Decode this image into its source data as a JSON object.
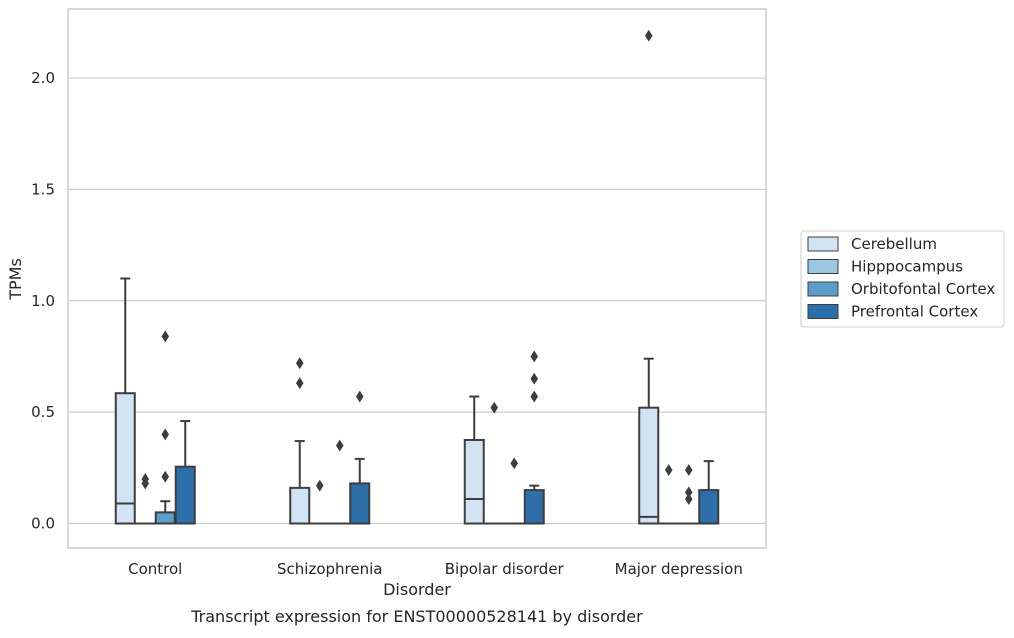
{
  "chart_data": {
    "type": "box",
    "title": "",
    "caption": "Transcript expression for ENST00000528141 by disorder",
    "xlabel": "Disorder",
    "ylabel": "TPMs",
    "ylim": [
      -0.11,
      2.31
    ],
    "yticks": [
      0.0,
      0.5,
      1.0,
      1.5,
      2.0
    ],
    "ytick_labels": [
      "0.0",
      "0.5",
      "1.0",
      "1.5",
      "2.0"
    ],
    "grid": "horizontal",
    "legend_position": "right",
    "categories": [
      "Control",
      "Schizophrenia",
      "Bipolar disorder",
      "Major depression"
    ],
    "series": [
      {
        "name": "Cerebellum",
        "color": "#d2e3f3",
        "boxes": [
          {
            "q1": 0.0,
            "median": 0.09,
            "q3": 0.585,
            "whisker_low": 0.0,
            "whisker_high": 1.1,
            "outliers": []
          },
          {
            "q1": 0.0,
            "median": 0.0,
            "q3": 0.16,
            "whisker_low": 0.0,
            "whisker_high": 0.37,
            "outliers": [
              0.63,
              0.72
            ]
          },
          {
            "q1": 0.0,
            "median": 0.11,
            "q3": 0.375,
            "whisker_low": 0.0,
            "whisker_high": 0.57,
            "outliers": []
          },
          {
            "q1": 0.0,
            "median": 0.03,
            "q3": 0.52,
            "whisker_low": 0.0,
            "whisker_high": 0.74,
            "outliers": [
              2.19
            ]
          }
        ]
      },
      {
        "name": "Hipppocampus",
        "color": "#9ac8e0",
        "boxes": [
          {
            "q1": 0.0,
            "median": 0.0,
            "q3": 0.0,
            "whisker_low": 0.0,
            "whisker_high": 0.0,
            "outliers": [
              0.18,
              0.2
            ]
          },
          {
            "q1": 0.0,
            "median": 0.0,
            "q3": 0.0,
            "whisker_low": 0.0,
            "whisker_high": 0.0,
            "outliers": [
              0.17
            ]
          },
          {
            "q1": 0.0,
            "median": 0.0,
            "q3": 0.0,
            "whisker_low": 0.0,
            "whisker_high": 0.0,
            "outliers": [
              0.52
            ]
          },
          {
            "q1": 0.0,
            "median": 0.0,
            "q3": 0.0,
            "whisker_low": 0.0,
            "whisker_high": 0.0,
            "outliers": [
              0.24
            ]
          }
        ]
      },
      {
        "name": "Orbitofontal Cortex",
        "color": "#5a9ec9",
        "boxes": [
          {
            "q1": 0.0,
            "median": 0.0,
            "q3": 0.05,
            "whisker_low": 0.0,
            "whisker_high": 0.1,
            "outliers": [
              0.21,
              0.4,
              0.84
            ]
          },
          {
            "q1": 0.0,
            "median": 0.0,
            "q3": 0.0,
            "whisker_low": 0.0,
            "whisker_high": 0.0,
            "outliers": [
              0.35
            ]
          },
          {
            "q1": 0.0,
            "median": 0.0,
            "q3": 0.0,
            "whisker_low": 0.0,
            "whisker_high": 0.0,
            "outliers": [
              0.27
            ]
          },
          {
            "q1": 0.0,
            "median": 0.0,
            "q3": 0.0,
            "whisker_low": 0.0,
            "whisker_high": 0.0,
            "outliers": [
              0.11,
              0.14,
              0.24
            ]
          }
        ]
      },
      {
        "name": "Prefrontal Cortex",
        "color": "#2c6fab",
        "boxes": [
          {
            "q1": 0.0,
            "median": 0.0,
            "q3": 0.255,
            "whisker_low": 0.0,
            "whisker_high": 0.46,
            "outliers": []
          },
          {
            "q1": 0.0,
            "median": 0.0,
            "q3": 0.18,
            "whisker_low": 0.0,
            "whisker_high": 0.29,
            "outliers": [
              0.57
            ]
          },
          {
            "q1": 0.0,
            "median": 0.0,
            "q3": 0.15,
            "whisker_low": 0.0,
            "whisker_high": 0.17,
            "outliers": [
              0.57,
              0.65,
              0.75
            ]
          },
          {
            "q1": 0.0,
            "median": 0.0,
            "q3": 0.15,
            "whisker_low": 0.0,
            "whisker_high": 0.28,
            "outliers": []
          }
        ]
      }
    ]
  }
}
